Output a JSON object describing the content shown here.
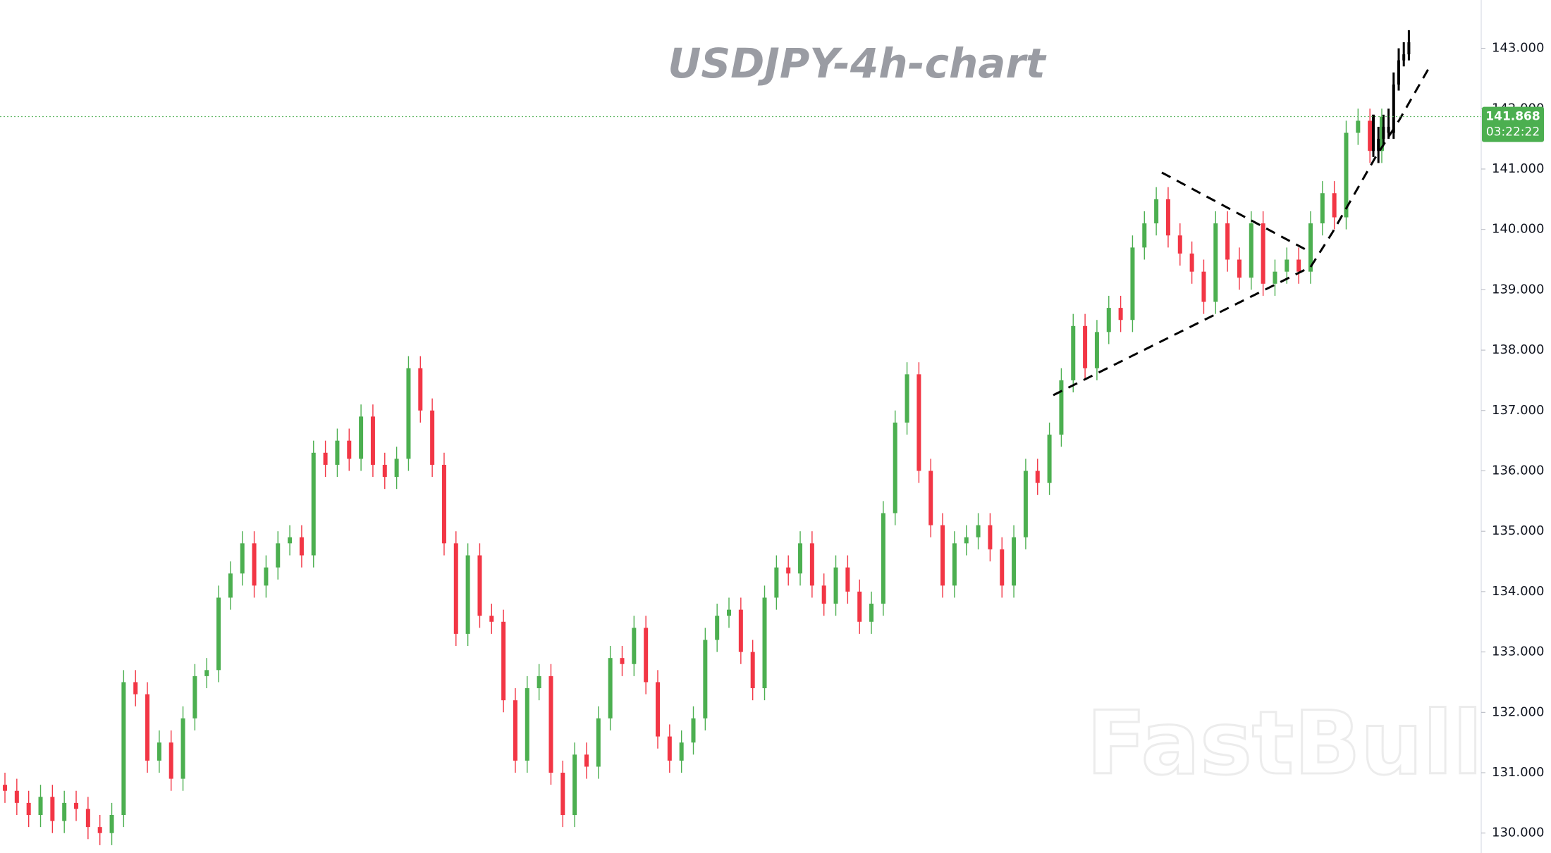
{
  "chart_data": {
    "type": "candlestick",
    "title": "USDJPY-4h-chart",
    "watermark": "FastBull",
    "ylim": [
      129.67,
      143.8
    ],
    "yticks": [
      {
        "value": 130,
        "label": "130.000"
      },
      {
        "value": 131,
        "label": "131.000"
      },
      {
        "value": 132,
        "label": "132.000"
      },
      {
        "value": 133,
        "label": "133.000"
      },
      {
        "value": 134,
        "label": "134.000"
      },
      {
        "value": 135,
        "label": "135.000"
      },
      {
        "value": 136,
        "label": "136.000"
      },
      {
        "value": 137,
        "label": "137.000"
      },
      {
        "value": 138,
        "label": "138.000"
      },
      {
        "value": 139,
        "label": "139.000"
      },
      {
        "value": 140,
        "label": "140.000"
      },
      {
        "value": 141,
        "label": "141.000"
      },
      {
        "value": 142,
        "label": "142.000"
      },
      {
        "value": 143,
        "label": "143.000"
      }
    ],
    "last_price": 141.868,
    "countdown": "03:22:22",
    "up_color": "#4caf50",
    "down_color": "#f23645",
    "projection_color": "#000000",
    "price_line_color": "#4caf50",
    "candles": {
      "open": [
        130.8,
        130.7,
        130.5,
        130.3,
        130.6,
        130.2,
        130.5,
        130.4,
        130.1,
        130.0,
        130.3,
        132.5,
        132.3,
        131.2,
        131.5,
        130.9,
        131.9,
        132.6,
        132.7,
        133.9,
        134.3,
        134.8,
        134.1,
        134.4,
        134.8,
        134.9,
        134.6,
        136.3,
        136.1,
        136.5,
        136.2,
        136.9,
        136.1,
        135.9,
        136.2,
        137.7,
        137.0,
        136.1,
        134.8,
        133.3,
        134.6,
        133.6,
        133.5,
        132.2,
        131.2,
        132.4,
        132.6,
        131.0,
        130.3,
        131.3,
        131.1,
        131.9,
        132.9,
        132.8,
        133.4,
        132.5,
        131.6,
        131.2,
        131.5,
        131.9,
        133.2,
        133.6,
        133.7,
        133.0,
        132.4,
        133.9,
        134.4,
        134.3,
        134.8,
        134.1,
        133.8,
        134.4,
        134.0,
        133.5,
        133.8,
        135.3,
        136.8,
        137.6,
        136.0,
        135.1,
        134.1,
        134.8,
        134.9,
        135.1,
        134.7,
        134.1,
        134.9,
        136.0,
        135.8,
        136.6,
        137.5,
        138.4,
        137.7,
        138.3,
        138.7,
        138.5,
        139.7,
        140.1,
        140.5,
        139.9,
        139.6,
        139.3,
        138.8,
        140.1,
        139.5,
        139.2,
        140.1,
        139.1,
        139.3,
        139.5,
        139.3,
        140.1,
        140.6,
        140.2,
        141.6,
        141.8,
        141.3
      ],
      "high": [
        131.0,
        130.9,
        130.7,
        130.8,
        130.8,
        130.7,
        130.7,
        130.6,
        130.3,
        130.5,
        132.7,
        132.7,
        132.5,
        131.7,
        131.7,
        132.1,
        132.8,
        132.9,
        134.1,
        134.5,
        135.0,
        135.0,
        134.6,
        135.0,
        135.1,
        135.1,
        136.5,
        136.5,
        136.7,
        136.7,
        137.1,
        137.1,
        136.3,
        136.4,
        137.9,
        137.9,
        137.2,
        136.3,
        135.0,
        134.8,
        134.8,
        133.8,
        133.7,
        132.4,
        132.6,
        132.8,
        132.8,
        131.2,
        131.5,
        131.5,
        132.1,
        133.1,
        133.1,
        133.6,
        133.6,
        132.7,
        131.8,
        131.7,
        132.1,
        133.4,
        133.8,
        133.9,
        133.9,
        133.2,
        134.1,
        134.6,
        134.6,
        135.0,
        135.0,
        134.3,
        134.6,
        134.6,
        134.2,
        134.0,
        135.5,
        137.0,
        137.8,
        137.8,
        136.2,
        135.3,
        135.0,
        135.1,
        135.3,
        135.3,
        134.9,
        135.1,
        136.2,
        136.2,
        136.8,
        137.7,
        138.6,
        138.6,
        138.5,
        138.9,
        138.9,
        139.9,
        140.3,
        140.7,
        140.7,
        140.1,
        139.8,
        139.5,
        140.3,
        140.3,
        139.7,
        140.3,
        140.3,
        139.5,
        139.7,
        139.7,
        140.3,
        140.8,
        140.8,
        141.8,
        142.0,
        142.0,
        142.0
      ],
      "low": [
        130.5,
        130.3,
        130.1,
        130.1,
        130.0,
        130.0,
        130.2,
        129.9,
        129.8,
        129.8,
        130.1,
        132.1,
        131.0,
        131.0,
        130.7,
        130.7,
        131.7,
        132.4,
        132.5,
        133.7,
        134.1,
        133.9,
        133.9,
        134.2,
        134.6,
        134.4,
        134.4,
        135.9,
        135.9,
        136.0,
        136.0,
        135.9,
        135.7,
        135.7,
        136.0,
        136.8,
        135.9,
        134.6,
        133.1,
        133.1,
        133.4,
        133.3,
        132.0,
        131.0,
        131.0,
        132.2,
        130.8,
        130.1,
        130.1,
        130.9,
        130.9,
        131.7,
        132.6,
        132.6,
        132.3,
        131.4,
        131.0,
        131.0,
        131.3,
        131.7,
        133.0,
        133.4,
        132.8,
        132.2,
        132.2,
        133.7,
        134.1,
        134.1,
        133.9,
        133.6,
        133.6,
        133.8,
        133.3,
        133.3,
        133.6,
        135.1,
        136.6,
        135.8,
        134.9,
        133.9,
        133.9,
        134.6,
        134.7,
        134.5,
        133.9,
        133.9,
        134.7,
        135.6,
        135.6,
        136.4,
        137.3,
        137.5,
        137.5,
        138.1,
        138.3,
        138.3,
        139.5,
        139.9,
        139.7,
        139.4,
        139.1,
        138.6,
        138.6,
        139.3,
        139.0,
        139.0,
        138.9,
        138.9,
        139.1,
        139.1,
        139.1,
        139.9,
        140.0,
        140.0,
        141.4,
        141.1,
        141.1
      ],
      "close": [
        130.7,
        130.5,
        130.3,
        130.6,
        130.2,
        130.5,
        130.4,
        130.1,
        130.0,
        130.3,
        132.5,
        132.3,
        131.2,
        131.5,
        130.9,
        131.9,
        132.6,
        132.7,
        133.9,
        134.3,
        134.8,
        134.1,
        134.4,
        134.8,
        134.9,
        134.6,
        136.3,
        136.1,
        136.5,
        136.2,
        136.9,
        136.1,
        135.9,
        136.2,
        137.7,
        137.0,
        136.1,
        134.8,
        133.3,
        134.6,
        133.6,
        133.5,
        132.2,
        131.2,
        132.4,
        132.6,
        131.0,
        130.3,
        131.3,
        131.1,
        131.9,
        132.9,
        132.8,
        133.4,
        132.5,
        131.6,
        131.2,
        131.5,
        131.9,
        133.2,
        133.6,
        133.7,
        133.0,
        132.4,
        133.9,
        134.4,
        134.3,
        134.8,
        134.1,
        133.8,
        134.4,
        134.0,
        133.5,
        133.8,
        135.3,
        136.8,
        137.6,
        136.0,
        135.1,
        134.1,
        134.8,
        134.9,
        135.1,
        134.7,
        134.1,
        134.9,
        136.0,
        135.8,
        136.6,
        137.5,
        138.4,
        137.7,
        138.3,
        138.7,
        138.5,
        139.7,
        140.1,
        140.5,
        139.9,
        139.6,
        139.3,
        138.8,
        140.1,
        139.5,
        139.2,
        140.1,
        139.1,
        139.3,
        139.5,
        139.3,
        140.1,
        140.6,
        140.2,
        141.6,
        141.8,
        141.3,
        141.868
      ]
    },
    "projection": {
      "open": [
        141.9,
        141.3,
        141.5,
        141.7,
        141.6,
        142.4,
        142.8,
        142.9
      ],
      "high": [
        141.9,
        141.7,
        141.9,
        142.0,
        142.6,
        143.0,
        143.1,
        143.3
      ],
      "low": [
        141.2,
        141.1,
        141.4,
        141.5,
        141.5,
        142.3,
        142.7,
        142.8
      ],
      "close": [
        141.3,
        141.5,
        141.7,
        141.6,
        142.4,
        142.8,
        142.9,
        143.1
      ]
    }
  }
}
